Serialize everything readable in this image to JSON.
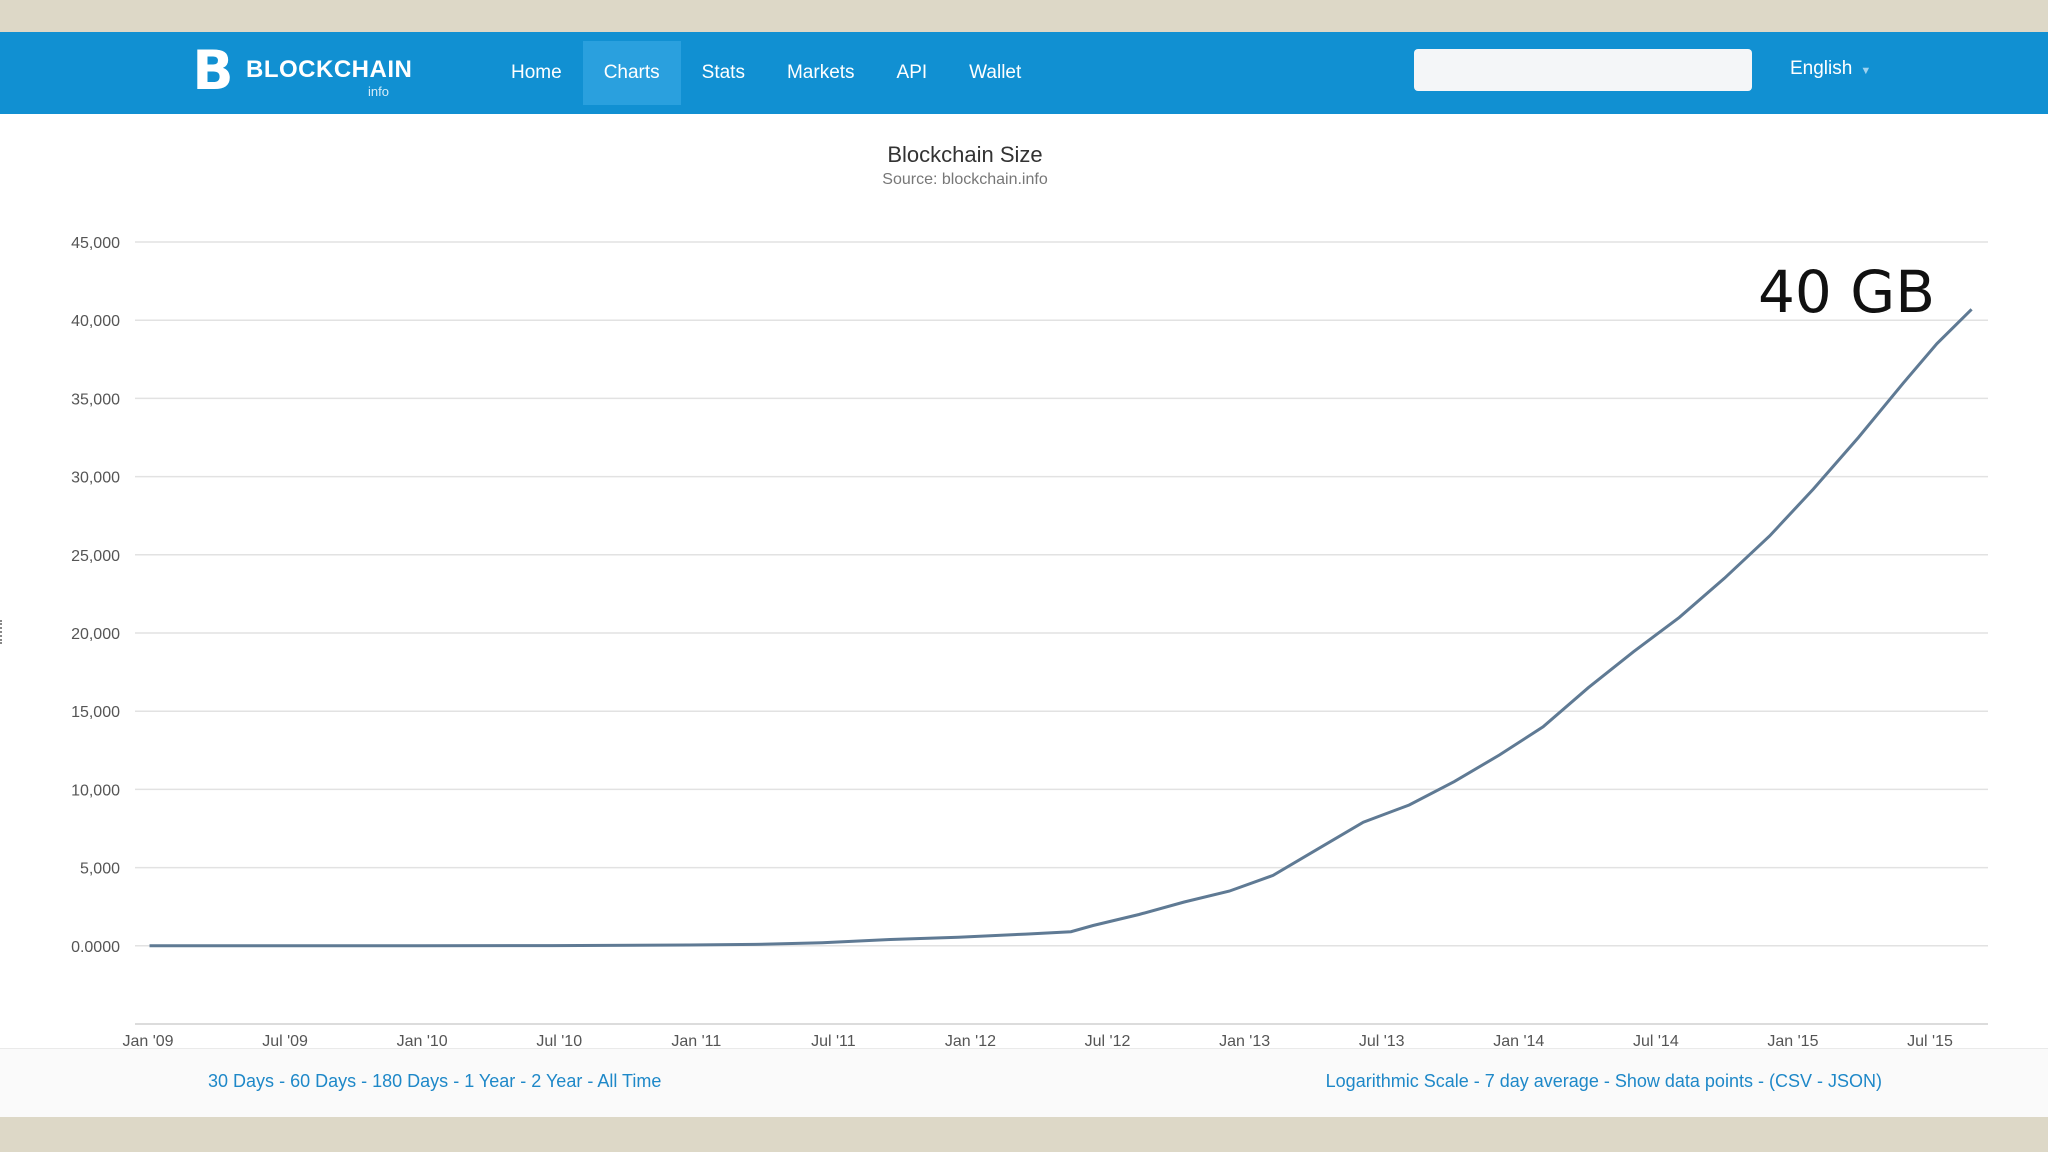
{
  "navbar": {
    "logo_text": "BLOCKCHAIN",
    "logo_sub": "info",
    "logo_icon": "bitcoin-b-logo-icon",
    "items": [
      {
        "label": "Home",
        "active": false
      },
      {
        "label": "Charts",
        "active": true
      },
      {
        "label": "Stats",
        "active": false
      },
      {
        "label": "Markets",
        "active": false
      },
      {
        "label": "API",
        "active": false
      },
      {
        "label": "Wallet",
        "active": false
      }
    ],
    "search": {
      "value": "",
      "placeholder": ""
    },
    "language": "English",
    "language_icon": "caret-down-icon"
  },
  "colors": {
    "navbar": "#1190d2",
    "nav_active": "#2aa0de",
    "series": "#5f7a94",
    "link": "#1e88c8",
    "gridline": "#e2e2e2"
  },
  "chart_data": {
    "type": "line",
    "title": "Blockchain Size",
    "subtitle": "Source: blockchain.info",
    "xlabel": "",
    "ylabel": "",
    "annotation": "40 GB",
    "x_tick_labels": [
      "Jan '09",
      "Jul '09",
      "Jan '10",
      "Jul '10",
      "Jan '11",
      "Jul '11",
      "Jan '12",
      "Jul '12",
      "Jan '13",
      "Jul '13",
      "Jan '14",
      "Jul '14",
      "Jan '15",
      "Jul '15"
    ],
    "y_ticks": [
      0,
      5000,
      10000,
      15000,
      20000,
      25000,
      30000,
      35000,
      40000,
      45000
    ],
    "y_tick_labels": [
      "0.0000",
      "5,000",
      "10,000",
      "15,000",
      "20,000",
      "25,000",
      "30,000",
      "35,000",
      "40,000",
      "45,000"
    ],
    "ylim": [
      -5000,
      45000
    ],
    "xlim": [
      "2009-01-01",
      "2015-10-15"
    ],
    "grid": true,
    "series": [
      {
        "points": [
          [
            "2009-01-03",
            0
          ],
          [
            "2009-07-01",
            1
          ],
          [
            "2010-01-01",
            3
          ],
          [
            "2010-07-01",
            10
          ],
          [
            "2011-01-01",
            50
          ],
          [
            "2011-04-01",
            90
          ],
          [
            "2011-07-01",
            200
          ],
          [
            "2011-10-01",
            400
          ],
          [
            "2012-01-01",
            550
          ],
          [
            "2012-04-01",
            750
          ],
          [
            "2012-06-01",
            900
          ],
          [
            "2012-07-01",
            1300
          ],
          [
            "2012-09-01",
            2000
          ],
          [
            "2012-11-01",
            2800
          ],
          [
            "2013-01-01",
            3500
          ],
          [
            "2013-03-01",
            4500
          ],
          [
            "2013-05-01",
            6200
          ],
          [
            "2013-07-01",
            7900
          ],
          [
            "2013-09-01",
            9000
          ],
          [
            "2013-11-01",
            10500
          ],
          [
            "2014-01-01",
            12200
          ],
          [
            "2014-03-01",
            14000
          ],
          [
            "2014-05-01",
            16500
          ],
          [
            "2014-07-01",
            18800
          ],
          [
            "2014-09-01",
            21000
          ],
          [
            "2014-11-01",
            23500
          ],
          [
            "2015-01-01",
            26200
          ],
          [
            "2015-03-01",
            29200
          ],
          [
            "2015-05-01",
            32500
          ],
          [
            "2015-07-01",
            36000
          ],
          [
            "2015-08-15",
            38500
          ],
          [
            "2015-10-01",
            40700
          ]
        ]
      }
    ]
  },
  "footer": {
    "ranges": [
      "30 Days",
      "60 Days",
      "180 Days",
      "1 Year",
      "2 Year",
      "All Time"
    ],
    "options": [
      "Logarithmic Scale",
      "7 day average",
      "Show data points"
    ],
    "export_open": "(CSV",
    "export_close": "JSON)"
  }
}
